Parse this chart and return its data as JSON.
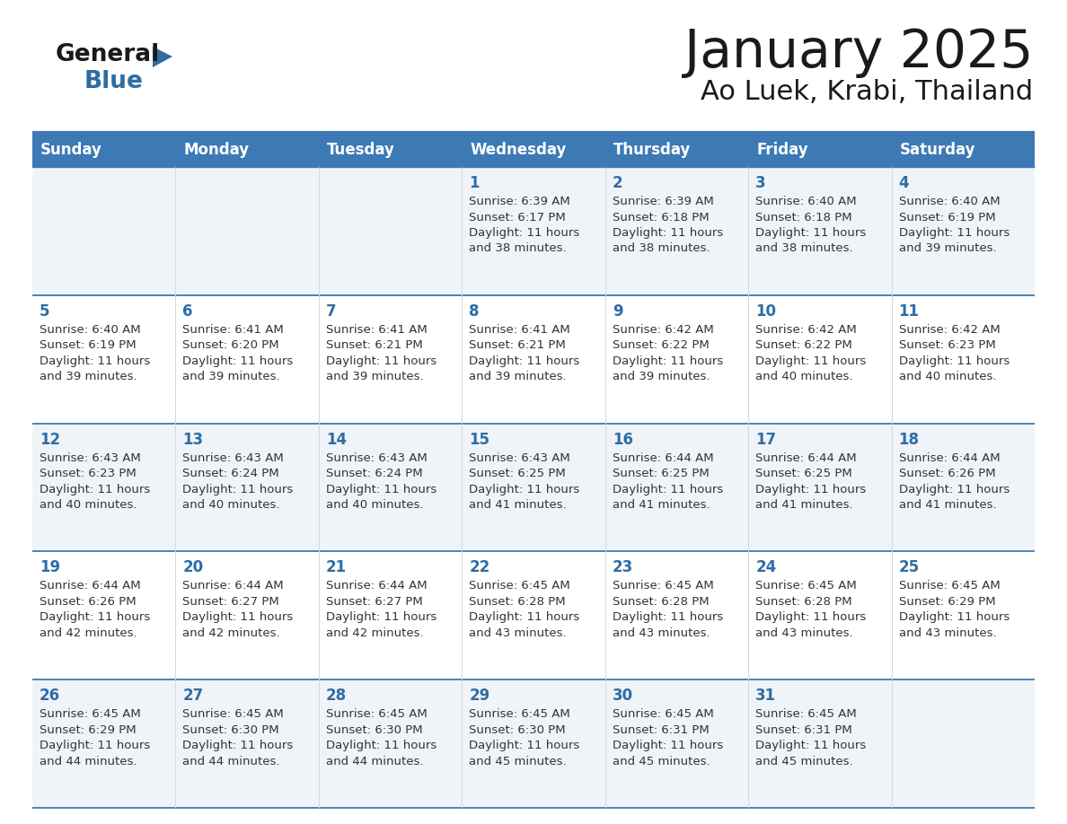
{
  "title": "January 2025",
  "subtitle": "Ao Luek, Krabi, Thailand",
  "days_of_week": [
    "Sunday",
    "Monday",
    "Tuesday",
    "Wednesday",
    "Thursday",
    "Friday",
    "Saturday"
  ],
  "header_bg_color": "#3d7ab5",
  "header_text_color": "#ffffff",
  "odd_row_bg": "#f0f4f8",
  "even_row_bg": "#ffffff",
  "day_num_color": "#2e6da4",
  "cell_text_color": "#333333",
  "border_color": "#3d7ab5",
  "title_color": "#1a1a1a",
  "subtitle_color": "#1a1a1a",
  "logo_general_color": "#1a1a1a",
  "logo_blue_color": "#2e6da4",
  "calendar_data": [
    [
      null,
      null,
      null,
      {
        "day": 1,
        "sunrise": "6:39 AM",
        "sunset": "6:17 PM",
        "daylight_hours": 11,
        "daylight_minutes": 38
      },
      {
        "day": 2,
        "sunrise": "6:39 AM",
        "sunset": "6:18 PM",
        "daylight_hours": 11,
        "daylight_minutes": 38
      },
      {
        "day": 3,
        "sunrise": "6:40 AM",
        "sunset": "6:18 PM",
        "daylight_hours": 11,
        "daylight_minutes": 38
      },
      {
        "day": 4,
        "sunrise": "6:40 AM",
        "sunset": "6:19 PM",
        "daylight_hours": 11,
        "daylight_minutes": 39
      }
    ],
    [
      {
        "day": 5,
        "sunrise": "6:40 AM",
        "sunset": "6:19 PM",
        "daylight_hours": 11,
        "daylight_minutes": 39
      },
      {
        "day": 6,
        "sunrise": "6:41 AM",
        "sunset": "6:20 PM",
        "daylight_hours": 11,
        "daylight_minutes": 39
      },
      {
        "day": 7,
        "sunrise": "6:41 AM",
        "sunset": "6:21 PM",
        "daylight_hours": 11,
        "daylight_minutes": 39
      },
      {
        "day": 8,
        "sunrise": "6:41 AM",
        "sunset": "6:21 PM",
        "daylight_hours": 11,
        "daylight_minutes": 39
      },
      {
        "day": 9,
        "sunrise": "6:42 AM",
        "sunset": "6:22 PM",
        "daylight_hours": 11,
        "daylight_minutes": 39
      },
      {
        "day": 10,
        "sunrise": "6:42 AM",
        "sunset": "6:22 PM",
        "daylight_hours": 11,
        "daylight_minutes": 40
      },
      {
        "day": 11,
        "sunrise": "6:42 AM",
        "sunset": "6:23 PM",
        "daylight_hours": 11,
        "daylight_minutes": 40
      }
    ],
    [
      {
        "day": 12,
        "sunrise": "6:43 AM",
        "sunset": "6:23 PM",
        "daylight_hours": 11,
        "daylight_minutes": 40
      },
      {
        "day": 13,
        "sunrise": "6:43 AM",
        "sunset": "6:24 PM",
        "daylight_hours": 11,
        "daylight_minutes": 40
      },
      {
        "day": 14,
        "sunrise": "6:43 AM",
        "sunset": "6:24 PM",
        "daylight_hours": 11,
        "daylight_minutes": 40
      },
      {
        "day": 15,
        "sunrise": "6:43 AM",
        "sunset": "6:25 PM",
        "daylight_hours": 11,
        "daylight_minutes": 41
      },
      {
        "day": 16,
        "sunrise": "6:44 AM",
        "sunset": "6:25 PM",
        "daylight_hours": 11,
        "daylight_minutes": 41
      },
      {
        "day": 17,
        "sunrise": "6:44 AM",
        "sunset": "6:25 PM",
        "daylight_hours": 11,
        "daylight_minutes": 41
      },
      {
        "day": 18,
        "sunrise": "6:44 AM",
        "sunset": "6:26 PM",
        "daylight_hours": 11,
        "daylight_minutes": 41
      }
    ],
    [
      {
        "day": 19,
        "sunrise": "6:44 AM",
        "sunset": "6:26 PM",
        "daylight_hours": 11,
        "daylight_minutes": 42
      },
      {
        "day": 20,
        "sunrise": "6:44 AM",
        "sunset": "6:27 PM",
        "daylight_hours": 11,
        "daylight_minutes": 42
      },
      {
        "day": 21,
        "sunrise": "6:44 AM",
        "sunset": "6:27 PM",
        "daylight_hours": 11,
        "daylight_minutes": 42
      },
      {
        "day": 22,
        "sunrise": "6:45 AM",
        "sunset": "6:28 PM",
        "daylight_hours": 11,
        "daylight_minutes": 43
      },
      {
        "day": 23,
        "sunrise": "6:45 AM",
        "sunset": "6:28 PM",
        "daylight_hours": 11,
        "daylight_minutes": 43
      },
      {
        "day": 24,
        "sunrise": "6:45 AM",
        "sunset": "6:28 PM",
        "daylight_hours": 11,
        "daylight_minutes": 43
      },
      {
        "day": 25,
        "sunrise": "6:45 AM",
        "sunset": "6:29 PM",
        "daylight_hours": 11,
        "daylight_minutes": 43
      }
    ],
    [
      {
        "day": 26,
        "sunrise": "6:45 AM",
        "sunset": "6:29 PM",
        "daylight_hours": 11,
        "daylight_minutes": 44
      },
      {
        "day": 27,
        "sunrise": "6:45 AM",
        "sunset": "6:30 PM",
        "daylight_hours": 11,
        "daylight_minutes": 44
      },
      {
        "day": 28,
        "sunrise": "6:45 AM",
        "sunset": "6:30 PM",
        "daylight_hours": 11,
        "daylight_minutes": 44
      },
      {
        "day": 29,
        "sunrise": "6:45 AM",
        "sunset": "6:30 PM",
        "daylight_hours": 11,
        "daylight_minutes": 45
      },
      {
        "day": 30,
        "sunrise": "6:45 AM",
        "sunset": "6:31 PM",
        "daylight_hours": 11,
        "daylight_minutes": 45
      },
      {
        "day": 31,
        "sunrise": "6:45 AM",
        "sunset": "6:31 PM",
        "daylight_hours": 11,
        "daylight_minutes": 45
      },
      null
    ]
  ]
}
